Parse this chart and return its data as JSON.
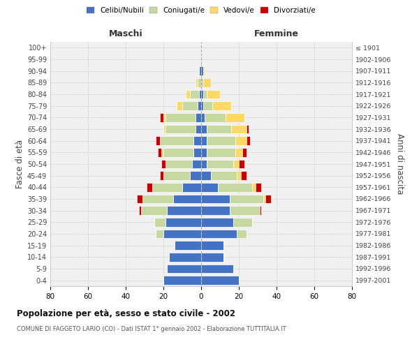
{
  "age_groups": [
    "0-4",
    "5-9",
    "10-14",
    "15-19",
    "20-24",
    "25-29",
    "30-34",
    "35-39",
    "40-44",
    "45-49",
    "50-54",
    "55-59",
    "60-64",
    "65-69",
    "70-74",
    "75-79",
    "80-84",
    "85-89",
    "90-94",
    "95-99",
    "100+"
  ],
  "birth_years": [
    "1997-2001",
    "1992-1996",
    "1987-1991",
    "1982-1986",
    "1977-1981",
    "1972-1976",
    "1967-1971",
    "1962-1966",
    "1957-1961",
    "1952-1956",
    "1947-1951",
    "1942-1946",
    "1937-1941",
    "1932-1936",
    "1927-1931",
    "1922-1926",
    "1917-1921",
    "1912-1916",
    "1907-1911",
    "1902-1906",
    "≤ 1901"
  ],
  "male": {
    "celibi": [
      20,
      18,
      17,
      14,
      20,
      19,
      18,
      15,
      10,
      6,
      5,
      4,
      4,
      3,
      3,
      2,
      1,
      0,
      1,
      0,
      0
    ],
    "coniugati": [
      0,
      0,
      0,
      0,
      4,
      6,
      14,
      16,
      16,
      14,
      14,
      16,
      18,
      16,
      16,
      8,
      5,
      2,
      0,
      0,
      0
    ],
    "vedovi": [
      0,
      0,
      0,
      0,
      0,
      0,
      0,
      0,
      0,
      0,
      0,
      1,
      0,
      1,
      1,
      3,
      2,
      1,
      0,
      0,
      0
    ],
    "divorziati": [
      0,
      0,
      0,
      0,
      0,
      0,
      1,
      3,
      3,
      2,
      2,
      2,
      2,
      0,
      2,
      0,
      0,
      0,
      0,
      0,
      0
    ]
  },
  "female": {
    "nubili": [
      20,
      17,
      12,
      12,
      19,
      17,
      15,
      15,
      9,
      5,
      3,
      3,
      3,
      3,
      2,
      1,
      1,
      0,
      1,
      0,
      0
    ],
    "coniugate": [
      0,
      0,
      0,
      0,
      5,
      10,
      16,
      18,
      18,
      14,
      14,
      15,
      15,
      13,
      11,
      5,
      2,
      1,
      0,
      0,
      0
    ],
    "vedove": [
      0,
      0,
      0,
      0,
      0,
      0,
      0,
      1,
      2,
      2,
      3,
      4,
      6,
      8,
      10,
      10,
      7,
      4,
      1,
      0,
      0
    ],
    "divorziate": [
      0,
      0,
      0,
      0,
      0,
      0,
      1,
      3,
      3,
      3,
      3,
      2,
      2,
      1,
      0,
      0,
      0,
      0,
      0,
      0,
      0
    ]
  },
  "colors": {
    "celibi": "#4472C4",
    "coniugati": "#C5D9A0",
    "vedovi": "#FFD966",
    "divorziati": "#CC0000"
  },
  "xlim": 80,
  "title": "Popolazione per età, sesso e stato civile - 2002",
  "subtitle": "COMUNE DI FAGGETO LARIO (CO) - Dati ISTAT 1° gennaio 2002 - Elaborazione TUTTITALIA.IT",
  "ylabel_left": "Fasce di età",
  "ylabel_right": "Anni di nascita",
  "xlabel_left": "Maschi",
  "xlabel_right": "Femmine",
  "legend_labels": [
    "Celibi/Nubili",
    "Coniugati/e",
    "Vedovi/e",
    "Divorziati/e"
  ],
  "bg_color": "#f0f0f0",
  "grid_color": "#cccccc"
}
